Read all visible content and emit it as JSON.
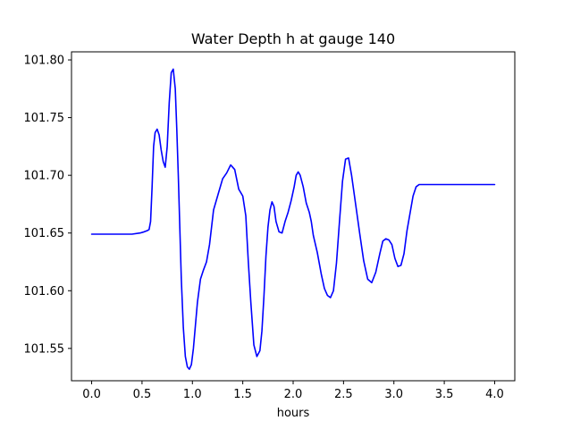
{
  "chart_data": {
    "type": "line",
    "title": "Water Depth h at gauge 140",
    "xlabel": "hours",
    "ylabel": "",
    "xlim": [
      -0.2,
      4.2
    ],
    "ylim": [
      101.522,
      101.807
    ],
    "xticks": [
      0.0,
      0.5,
      1.0,
      1.5,
      2.0,
      2.5,
      3.0,
      3.5,
      4.0
    ],
    "xtick_labels": [
      "0.0",
      "0.5",
      "1.0",
      "1.5",
      "2.0",
      "2.5",
      "3.0",
      "3.5",
      "4.0"
    ],
    "yticks": [
      101.55,
      101.6,
      101.65,
      101.7,
      101.75,
      101.8
    ],
    "ytick_labels": [
      "101.55",
      "101.60",
      "101.65",
      "101.70",
      "101.75",
      "101.80"
    ],
    "grid": false,
    "legend": "none",
    "series": [
      {
        "color": "#0000ff",
        "x": [
          0.0,
          0.2,
          0.4,
          0.48,
          0.52,
          0.55,
          0.57,
          0.585,
          0.6,
          0.615,
          0.63,
          0.65,
          0.67,
          0.69,
          0.71,
          0.73,
          0.75,
          0.77,
          0.79,
          0.81,
          0.83,
          0.845,
          0.86,
          0.875,
          0.89,
          0.91,
          0.93,
          0.95,
          0.97,
          0.99,
          1.01,
          1.03,
          1.05,
          1.08,
          1.11,
          1.14,
          1.17,
          1.21,
          1.26,
          1.3,
          1.34,
          1.38,
          1.42,
          1.46,
          1.5,
          1.53,
          1.555,
          1.58,
          1.61,
          1.64,
          1.67,
          1.69,
          1.71,
          1.73,
          1.75,
          1.77,
          1.79,
          1.81,
          1.83,
          1.86,
          1.89,
          1.92,
          1.95,
          1.98,
          2.01,
          2.03,
          2.05,
          2.07,
          2.1,
          2.13,
          2.16,
          2.18,
          2.2,
          2.24,
          2.28,
          2.31,
          2.34,
          2.37,
          2.4,
          2.43,
          2.46,
          2.49,
          2.52,
          2.55,
          2.58,
          2.62,
          2.66,
          2.7,
          2.74,
          2.78,
          2.82,
          2.86,
          2.89,
          2.92,
          2.95,
          2.98,
          3.01,
          3.04,
          3.07,
          3.1,
          3.13,
          3.16,
          3.19,
          3.22,
          3.25,
          3.28,
          3.31,
          3.34,
          3.37,
          3.4,
          3.43,
          3.46,
          3.49,
          3.52,
          3.55,
          3.58,
          3.61,
          3.65,
          3.68,
          3.71,
          3.74,
          3.77,
          3.8,
          3.83,
          3.86,
          3.89,
          3.92,
          3.95,
          3.98,
          4.0
        ],
        "y": [
          101.649,
          101.649,
          101.649,
          101.65,
          101.651,
          101.652,
          101.653,
          101.66,
          101.69,
          101.725,
          101.737,
          101.74,
          101.735,
          101.722,
          101.712,
          101.707,
          101.725,
          101.763,
          101.789,
          101.792,
          101.775,
          101.74,
          101.7,
          101.655,
          101.61,
          101.568,
          101.543,
          101.534,
          101.532,
          101.536,
          101.55,
          101.57,
          101.59,
          101.61,
          101.618,
          101.625,
          101.64,
          101.67,
          101.685,
          101.697,
          101.702,
          101.709,
          101.705,
          101.688,
          101.682,
          101.665,
          101.625,
          101.59,
          101.553,
          101.543,
          101.548,
          101.565,
          101.595,
          101.63,
          101.655,
          101.67,
          101.677,
          101.673,
          101.66,
          101.651,
          101.65,
          101.66,
          101.668,
          101.678,
          101.69,
          101.7,
          101.703,
          101.7,
          101.69,
          101.676,
          101.668,
          101.66,
          101.648,
          101.633,
          101.614,
          101.602,
          101.596,
          101.594,
          101.6,
          101.624,
          101.66,
          101.695,
          101.714,
          101.715,
          101.7,
          101.675,
          101.65,
          101.626,
          101.61,
          101.607,
          101.616,
          101.632,
          101.643,
          101.645,
          101.644,
          101.64,
          101.628,
          101.621,
          101.622,
          101.632,
          101.652,
          101.667,
          101.682,
          101.69,
          101.692,
          101.692,
          101.692,
          101.692,
          101.692,
          101.692,
          101.692,
          101.692,
          101.692,
          101.692,
          101.692,
          101.692,
          101.692,
          101.692,
          101.692,
          101.692,
          101.692,
          101.692,
          101.692,
          101.692,
          101.692,
          101.692,
          101.692,
          101.692,
          101.692,
          101.692
        ]
      }
    ]
  }
}
